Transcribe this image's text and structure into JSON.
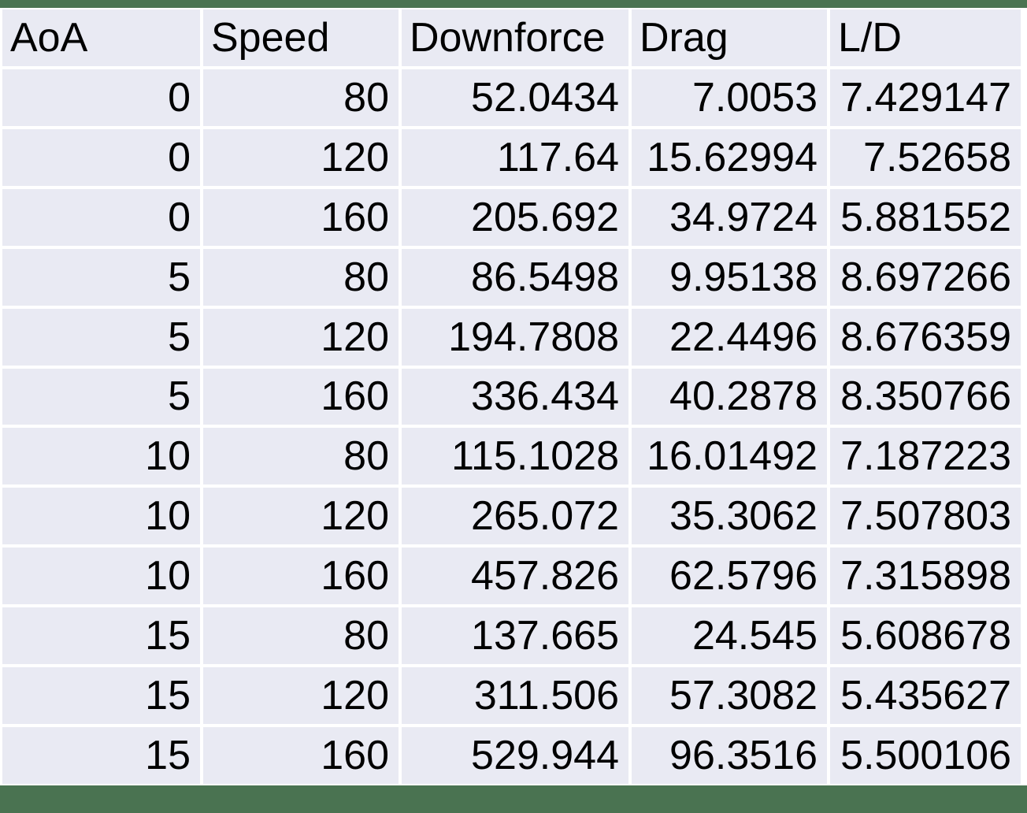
{
  "colors": {
    "background_green": "#4A7351",
    "cell_fill": "#E9EAF3",
    "gridline": "#FFFFFF",
    "text": "#000000"
  },
  "chart_data": {
    "type": "table",
    "title": "",
    "columns": [
      "AoA",
      "Speed",
      "Downforce",
      "Drag",
      "L/D"
    ],
    "rows": [
      [
        "0",
        "80",
        "52.0434",
        "7.0053",
        "7.429147"
      ],
      [
        "0",
        "120",
        "117.64",
        "15.62994",
        "7.52658"
      ],
      [
        "0",
        "160",
        "205.692",
        "34.9724",
        "5.881552"
      ],
      [
        "5",
        "80",
        "86.5498",
        "9.95138",
        "8.697266"
      ],
      [
        "5",
        "120",
        "194.7808",
        "22.4496",
        "8.676359"
      ],
      [
        "5",
        "160",
        "336.434",
        "40.2878",
        "8.350766"
      ],
      [
        "10",
        "80",
        "115.1028",
        "16.01492",
        "7.187223"
      ],
      [
        "10",
        "120",
        "265.072",
        "35.3062",
        "7.507803"
      ],
      [
        "10",
        "160",
        "457.826",
        "62.5796",
        "7.315898"
      ],
      [
        "15",
        "80",
        "137.665",
        "24.545",
        "5.608678"
      ],
      [
        "15",
        "120",
        "311.506",
        "57.3082",
        "5.435627"
      ],
      [
        "15",
        "160",
        "529.944",
        "96.3516",
        "5.500106"
      ]
    ]
  }
}
